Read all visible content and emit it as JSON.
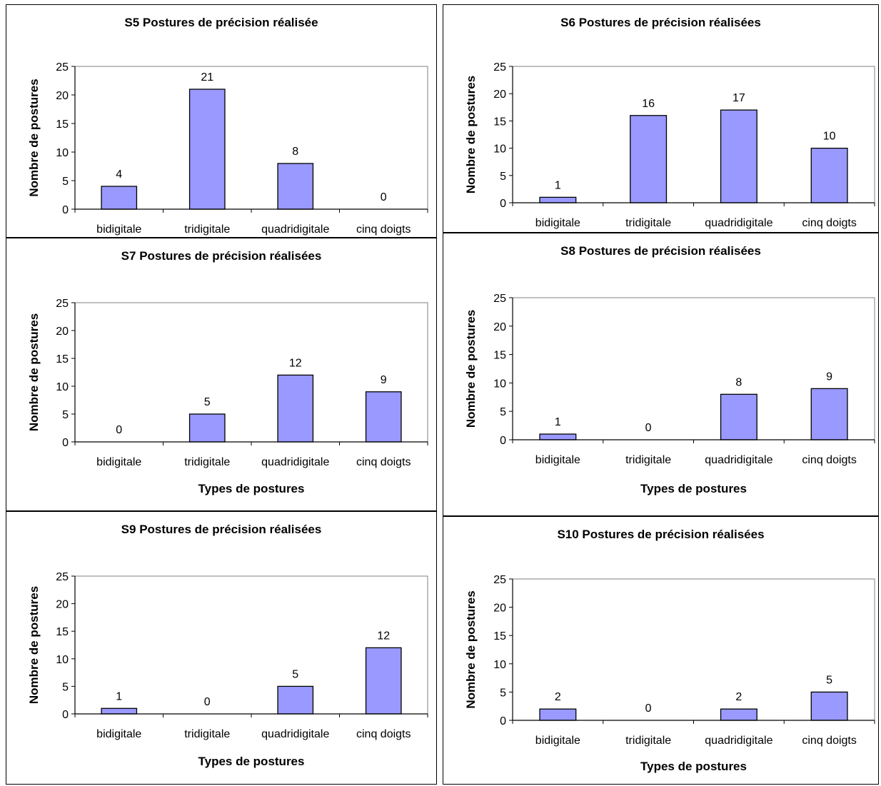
{
  "colors": {
    "bar_fill": "#9999ff",
    "bar_stroke": "#000000",
    "plot_border": "#808080"
  },
  "chart_data": [
    {
      "id": "S5",
      "type": "bar",
      "title": "S5 Postures de précision réalisée",
      "xlabel": "",
      "ylabel": "Nombre de postures",
      "ylim": [
        0,
        25
      ],
      "yticks": [
        0,
        5,
        10,
        15,
        20,
        25
      ],
      "categories": [
        "bidigitale",
        "tridigitale",
        "quadridigitale",
        "cinq doigts"
      ],
      "values": [
        4,
        21,
        8,
        0
      ],
      "data_labels": [
        "4",
        "21",
        "8",
        "0"
      ],
      "grid": false
    },
    {
      "id": "S6",
      "type": "bar",
      "title": "S6 Postures de précision réalisées",
      "xlabel": "",
      "ylabel": "Nombre de postures",
      "ylim": [
        0,
        25
      ],
      "yticks": [
        0,
        5,
        10,
        15,
        20,
        25
      ],
      "categories": [
        "bidigitale",
        "tridigitale",
        "quadridigitale",
        "cinq doigts"
      ],
      "values": [
        1,
        16,
        17,
        10
      ],
      "data_labels": [
        "1",
        "16",
        "17",
        "10"
      ],
      "grid": false
    },
    {
      "id": "S7",
      "type": "bar",
      "title": "S7 Postures de précision réalisées",
      "xlabel": "Types de postures",
      "ylabel": "Nombre de postures",
      "ylim": [
        0,
        25
      ],
      "yticks": [
        0,
        5,
        10,
        15,
        20,
        25
      ],
      "categories": [
        "bidigitale",
        "tridigitale",
        "quadridigitale",
        "cinq doigts"
      ],
      "values": [
        0,
        5,
        12,
        9
      ],
      "data_labels": [
        "0",
        "5",
        "12",
        "9"
      ],
      "grid": false
    },
    {
      "id": "S8",
      "type": "bar",
      "title": "S8 Postures de précision réalisées",
      "xlabel": "Types de postures",
      "ylabel": "Nombre de postures",
      "ylim": [
        0,
        25
      ],
      "yticks": [
        0,
        5,
        10,
        15,
        20,
        25
      ],
      "categories": [
        "bidigitale",
        "tridigitale",
        "quadridigitale",
        "cinq doigts"
      ],
      "values": [
        1,
        0,
        8,
        9
      ],
      "data_labels": [
        "1",
        "0",
        "8",
        "9"
      ],
      "grid": false
    },
    {
      "id": "S9",
      "type": "bar",
      "title": "S9 Postures de précision réalisées",
      "xlabel": "Types de postures",
      "ylabel": "Nombre de postures",
      "ylim": [
        0,
        25
      ],
      "yticks": [
        0,
        5,
        10,
        15,
        20,
        25
      ],
      "categories": [
        "bidigitale",
        "tridigitale",
        "quadridigitale",
        "cinq doigts"
      ],
      "values": [
        1,
        0,
        5,
        12
      ],
      "data_labels": [
        "1",
        "0",
        "5",
        "12"
      ],
      "grid": false
    },
    {
      "id": "S10",
      "type": "bar",
      "title": "S10 Postures de précision réalisées",
      "xlabel": "Types de postures",
      "ylabel": "Nombre de postures",
      "ylim": [
        0,
        25
      ],
      "yticks": [
        0,
        5,
        10,
        15,
        20,
        25
      ],
      "categories": [
        "bidigitale",
        "tridigitale",
        "quadridigitale",
        "cinq doigts"
      ],
      "values": [
        2,
        0,
        2,
        5
      ],
      "data_labels": [
        "2",
        "0",
        "2",
        "5"
      ],
      "grid": false
    }
  ]
}
